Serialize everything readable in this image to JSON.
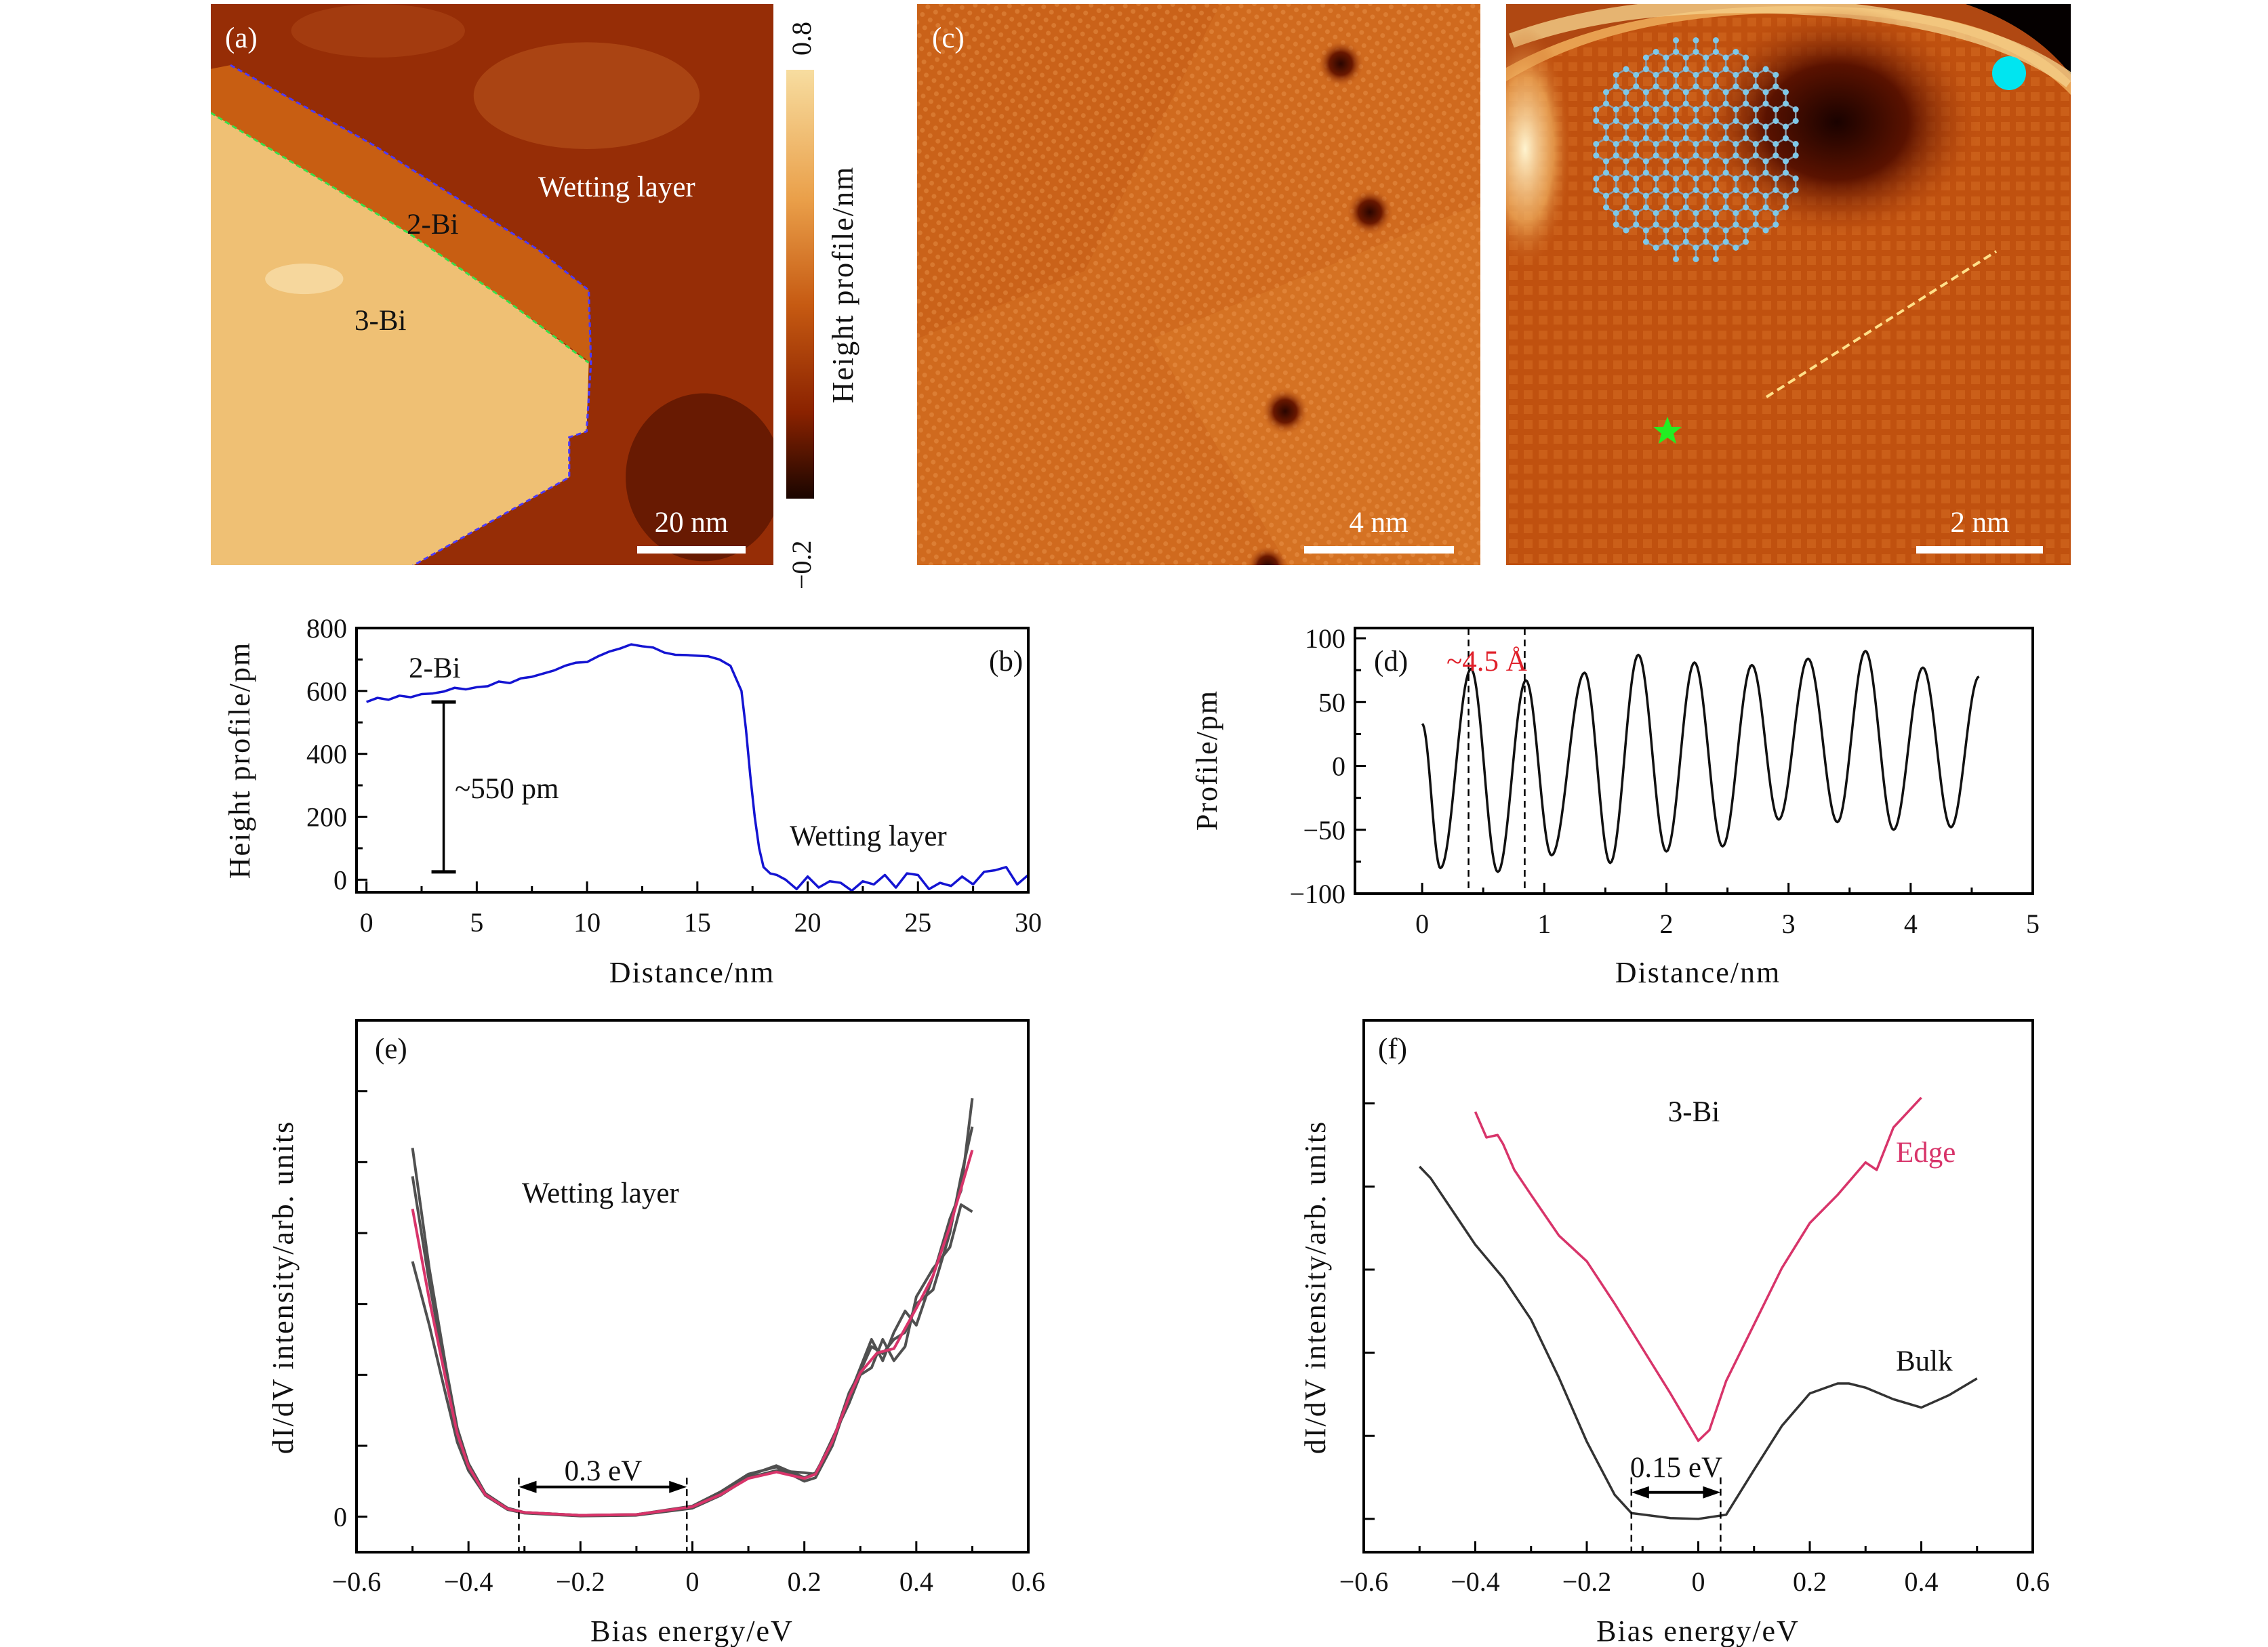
{
  "panel_a": {
    "label": "(a)",
    "region_2bi": "2-Bi",
    "region_3bi": "3-Bi",
    "region_wetting": "Wetting layer",
    "scale_bar": "20 nm",
    "colorbar": {
      "max_label": "0.8",
      "min_label": "−0.2",
      "title": "Height profile/nm",
      "colors": [
        "#f7dda0",
        "#eaa04a",
        "#c65a12",
        "#8a2200",
        "#1a0500"
      ]
    },
    "boundary_colors": {
      "wetting_2bi": "#4a3aff",
      "2bi_3bi": "#35e04a"
    }
  },
  "panel_c": {
    "label": "(c)",
    "scale_bar": "4 nm"
  },
  "panel_c2": {
    "scale_bar": "2 nm",
    "markers": {
      "dot_color": "#00e5f0",
      "star_color": "#22ee22",
      "lattice_color": "#7fc8e8",
      "line_color": "#ffe08a"
    }
  },
  "chart_data": [
    {
      "panel": "(b)",
      "type": "line",
      "xlabel": "Distance/nm",
      "ylabel": "Height profile/pm",
      "xlim": [
        -0.45,
        30
      ],
      "ylim": [
        -40,
        800
      ],
      "xticks": [
        0,
        5,
        10,
        15,
        20,
        25,
        30
      ],
      "xtick_labels": [
        "0",
        "5",
        "10",
        "15",
        "20",
        "25",
        "30"
      ],
      "yticks": [
        0,
        200,
        400,
        600,
        800
      ],
      "ytick_labels": [
        "0",
        "200",
        "400",
        "600",
        "800"
      ],
      "series": [
        {
          "color": "#1414d2",
          "x": [
            0,
            0.5,
            1,
            1.5,
            2,
            2.5,
            3,
            3.5,
            4,
            4.5,
            5,
            5.5,
            6,
            6.5,
            7,
            7.5,
            8,
            8.5,
            9,
            9.5,
            10,
            10.5,
            11,
            11.5,
            12,
            12.5,
            13,
            13.5,
            14,
            14.5,
            15,
            15.5,
            16,
            16.5,
            17,
            17.2,
            17.4,
            17.6,
            17.8,
            18,
            18.3,
            18.6,
            19,
            19.5,
            20,
            20.5,
            21,
            21.5,
            22,
            22.5,
            23,
            23.5,
            24,
            24.5,
            25,
            25.5,
            26,
            26.5,
            27,
            27.5,
            28,
            28.5,
            29,
            29.5,
            30
          ],
          "y": [
            565,
            578,
            572,
            585,
            580,
            590,
            592,
            598,
            610,
            605,
            612,
            615,
            630,
            625,
            640,
            645,
            655,
            665,
            680,
            690,
            692,
            710,
            725,
            735,
            748,
            742,
            738,
            722,
            715,
            714,
            712,
            710,
            700,
            680,
            600,
            480,
            330,
            200,
            100,
            40,
            20,
            15,
            0,
            -30,
            10,
            -25,
            -5,
            -10,
            -35,
            -5,
            -15,
            15,
            -25,
            20,
            15,
            -30,
            -10,
            -20,
            10,
            -15,
            25,
            30,
            40,
            -15,
            15
          ]
        }
      ],
      "annotations": {
        "region_top": "2-Bi",
        "step_height": "~550 pm",
        "region_bottom": "Wetting layer",
        "step_bar_range": [
          25,
          565
        ],
        "step_bar_x": 3.5
      }
    },
    {
      "panel": "(d)",
      "type": "line",
      "xlabel": "Distance/nm",
      "ylabel": "Profile/pm",
      "xlim": [
        -0.55,
        5
      ],
      "ylim": [
        -100,
        108
      ],
      "xticks": [
        0,
        1,
        2,
        3,
        4,
        5
      ],
      "xtick_labels": [
        "0",
        "1",
        "2",
        "3",
        "4",
        "5"
      ],
      "yticks": [
        -100,
        -50,
        0,
        50,
        100
      ],
      "ytick_labels": [
        "−100",
        "−50",
        "0",
        "50",
        "100"
      ],
      "series": [
        {
          "color": "#111111",
          "x": [
            0,
            0.15,
            0.4,
            0.62,
            0.85,
            1.06,
            1.33,
            1.54,
            1.77,
            2.0,
            2.23,
            2.46,
            2.7,
            2.92,
            3.16,
            3.4,
            3.63,
            3.86,
            4.1,
            4.33,
            4.56
          ],
          "y": [
            33,
            -80,
            76,
            -83,
            67,
            -70,
            73,
            -76,
            87,
            -67,
            81,
            -63,
            79,
            -42,
            84,
            -44,
            90,
            -50,
            77,
            -48,
            70
          ]
        }
      ],
      "markers_x": [
        0.38,
        0.84
      ],
      "annotations": {
        "spacing": "~4.5 Å",
        "spacing_color": "#e0202a"
      }
    },
    {
      "panel": "(e)",
      "type": "line",
      "xlabel": "Bias energy/eV",
      "ylabel": "dI/dV intensity/arb. units",
      "xlim": [
        -0.6,
        0.6
      ],
      "ylim": [
        -0.5,
        7
      ],
      "xticks": [
        -0.6,
        -0.4,
        -0.2,
        0,
        0.2,
        0.4,
        0.6
      ],
      "xtick_labels": [
        "−0.6",
        "−0.4",
        "−0.2",
        "0",
        "0.2",
        "0.4",
        "0.6"
      ],
      "yticks": [
        0,
        1,
        2,
        3,
        4,
        5,
        6
      ],
      "ytick_labels": [
        "0",
        "",
        "",
        "",
        "",
        "",
        ""
      ],
      "series": [
        {
          "color": "#505050",
          "x": [
            -0.5,
            -0.47,
            -0.44,
            -0.42,
            -0.4,
            -0.37,
            -0.33,
            -0.3,
            -0.2,
            -0.1,
            0,
            0.05,
            0.1,
            0.15,
            0.2,
            0.22,
            0.25,
            0.28,
            0.3,
            0.32,
            0.34,
            0.36,
            0.38,
            0.4,
            0.43,
            0.46,
            0.48,
            0.5
          ],
          "y": [
            5.2,
            3.5,
            2.1,
            1.25,
            0.75,
            0.33,
            0.12,
            0.06,
            0.02,
            0.03,
            0.15,
            0.35,
            0.6,
            0.7,
            0.5,
            0.55,
            1.0,
            1.7,
            2.1,
            2.5,
            2.2,
            2.6,
            2.9,
            2.7,
            3.4,
            4.2,
            4.6,
            5.9
          ]
        },
        {
          "color": "#505050",
          "x": [
            -0.5,
            -0.47,
            -0.44,
            -0.42,
            -0.4,
            -0.37,
            -0.33,
            -0.3,
            -0.2,
            -0.1,
            0,
            0.05,
            0.1,
            0.15,
            0.2,
            0.22,
            0.25,
            0.28,
            0.3,
            0.32,
            0.34,
            0.36,
            0.38,
            0.4,
            0.43,
            0.46,
            0.48,
            0.5
          ],
          "y": [
            3.6,
            2.7,
            1.7,
            1.05,
            0.65,
            0.3,
            0.1,
            0.05,
            0.01,
            0.02,
            0.12,
            0.3,
            0.55,
            0.65,
            0.62,
            0.6,
            1.1,
            1.6,
            2.0,
            2.1,
            2.5,
            2.2,
            2.4,
            3.1,
            3.5,
            3.8,
            4.4,
            4.3
          ]
        },
        {
          "color": "#505050",
          "x": [
            -0.5,
            -0.47,
            -0.44,
            -0.42,
            -0.4,
            -0.37,
            -0.33,
            -0.3,
            -0.2,
            -0.1,
            0,
            0.05,
            0.1,
            0.15,
            0.2,
            0.22,
            0.25,
            0.28,
            0.3,
            0.32,
            0.34,
            0.36,
            0.38,
            0.4,
            0.43,
            0.46,
            0.48,
            0.5
          ],
          "y": [
            4.8,
            3.3,
            2.0,
            1.2,
            0.72,
            0.32,
            0.12,
            0.06,
            0.02,
            0.03,
            0.14,
            0.32,
            0.58,
            0.72,
            0.55,
            0.62,
            1.05,
            1.75,
            2.05,
            2.4,
            2.3,
            2.5,
            2.6,
            3.0,
            3.2,
            4.0,
            4.8,
            5.5
          ]
        },
        {
          "color": "#d8346a",
          "x": [
            -0.5,
            -0.47,
            -0.44,
            -0.42,
            -0.4,
            -0.37,
            -0.33,
            -0.3,
            -0.2,
            -0.1,
            0,
            0.05,
            0.1,
            0.15,
            0.2,
            0.22,
            0.25,
            0.28,
            0.3,
            0.33,
            0.36,
            0.4,
            0.43,
            0.46,
            0.5
          ],
          "y": [
            4.34,
            3.06,
            1.91,
            1.17,
            0.71,
            0.31,
            0.11,
            0.06,
            0.02,
            0.03,
            0.14,
            0.31,
            0.54,
            0.63,
            0.54,
            0.6,
            1.06,
            1.69,
            2.03,
            2.31,
            2.37,
            2.94,
            3.4,
            4.09,
            5.17
          ]
        }
      ],
      "markers_x": [
        -0.31,
        -0.01
      ],
      "annotations": {
        "region": "Wetting layer",
        "gap": "0.3 eV"
      }
    },
    {
      "panel": "(f)",
      "type": "line",
      "xlabel": "Bias energy/eV",
      "ylabel": "dI/dV intensity/arb. units",
      "xlim": [
        -0.6,
        0.6
      ],
      "ylim": [
        -0.4,
        6
      ],
      "xticks": [
        -0.6,
        -0.4,
        -0.2,
        0,
        0.2,
        0.4,
        0.6
      ],
      "xtick_labels": [
        "−0.6",
        "−0.4",
        "−0.2",
        "0",
        "0.2",
        "0.4",
        "0.6"
      ],
      "yticks": [
        0,
        1,
        2,
        3,
        4,
        5
      ],
      "ytick_labels": [
        "",
        "",
        "",
        "",
        "",
        ""
      ],
      "series": [
        {
          "name": "Bulk",
          "color": "#333333",
          "x": [
            -0.5,
            -0.48,
            -0.45,
            -0.4,
            -0.35,
            -0.3,
            -0.25,
            -0.2,
            -0.15,
            -0.12,
            -0.05,
            0,
            0.05,
            0.1,
            0.15,
            0.2,
            0.25,
            0.27,
            0.3,
            0.35,
            0.4,
            0.45,
            0.5
          ],
          "y": [
            4.24,
            4.1,
            3.8,
            3.3,
            2.9,
            2.4,
            1.7,
            0.93,
            0.29,
            0.07,
            0.01,
            0,
            0.05,
            0.59,
            1.12,
            1.51,
            1.63,
            1.63,
            1.58,
            1.44,
            1.34,
            1.49,
            1.69
          ]
        },
        {
          "name": "Edge",
          "color": "#d8346a",
          "x": [
            -0.4,
            -0.38,
            -0.36,
            -0.35,
            -0.33,
            -0.3,
            -0.25,
            -0.2,
            -0.15,
            -0.1,
            -0.05,
            0,
            0.02,
            0.05,
            0.1,
            0.15,
            0.2,
            0.25,
            0.3,
            0.32,
            0.35,
            0.4
          ],
          "y": [
            4.9,
            4.59,
            4.62,
            4.51,
            4.2,
            3.9,
            3.41,
            3.1,
            2.59,
            2.05,
            1.51,
            0.94,
            1.07,
            1.66,
            2.34,
            3.02,
            3.56,
            3.9,
            4.29,
            4.2,
            4.71,
            5.07
          ]
        }
      ],
      "markers_x": [
        -0.12,
        0.04
      ],
      "annotations": {
        "region": "3-Bi",
        "edge": "Edge",
        "bulk": "Bulk",
        "gap": "0.15 eV",
        "edge_color": "#d8346a"
      }
    }
  ]
}
